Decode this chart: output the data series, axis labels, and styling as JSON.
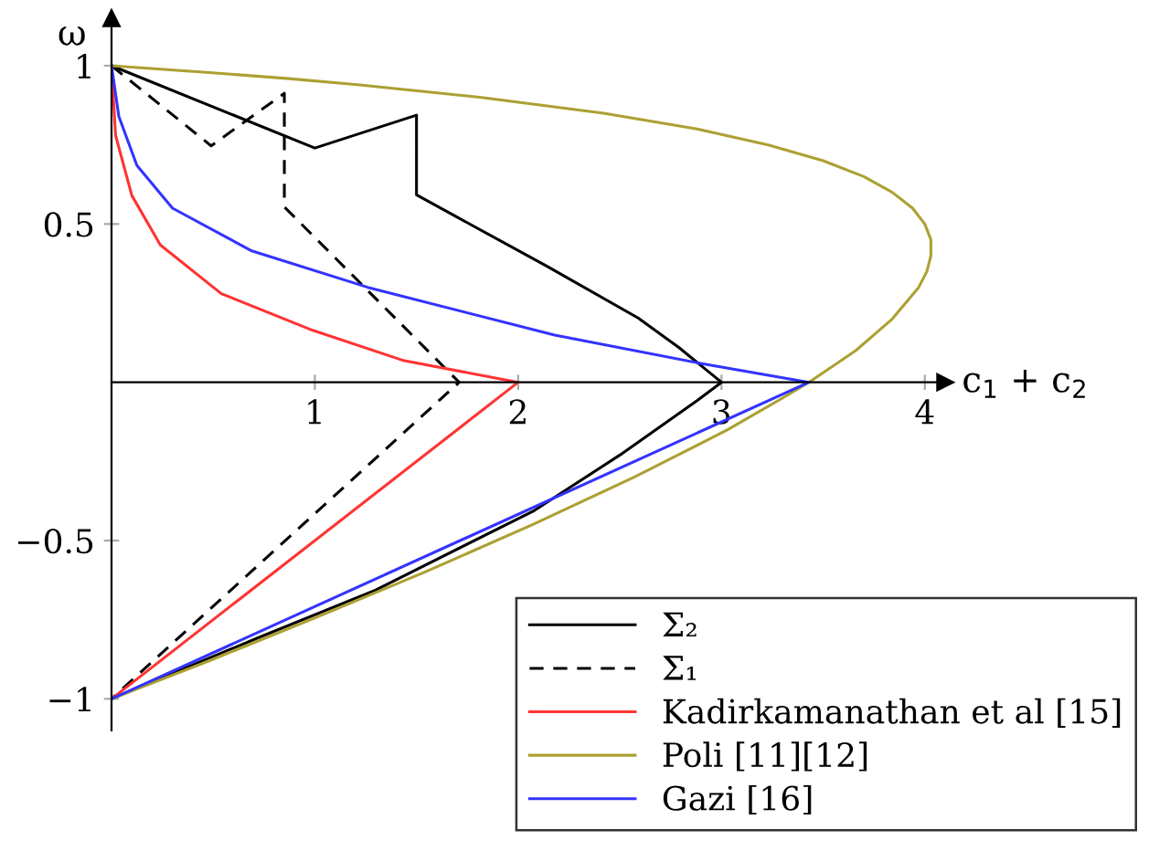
{
  "chart_data": {
    "type": "line",
    "xlabel": "c$_{1}$ + c$_{2}$",
    "ylabel": "ω",
    "xlim": [
      0,
      4.1
    ],
    "ylim": [
      -1.1,
      1.15
    ],
    "xticks": [
      1,
      2,
      3,
      4
    ],
    "yticks": [
      {
        "value": -1,
        "label": "−1"
      },
      {
        "value": -0.5,
        "label": "−0.5"
      },
      0.5,
      1
    ],
    "grid": false,
    "legend": "bottom right",
    "marker": "none",
    "series": [
      {
        "name": "Σ₂",
        "color": "#000000",
        "line_style": "solid",
        "x": [
          0,
          1.0,
          1.5,
          1.5,
          2.14,
          2.59,
          2.79,
          3.0,
          2.88,
          2.5,
          2.08,
          1.3,
          0.71,
          0
        ],
        "values": [
          1,
          0.74,
          0.844,
          0.592,
          0.367,
          0.203,
          0.11,
          0,
          -0.058,
          -0.23,
          -0.405,
          -0.656,
          -0.81,
          -1
        ]
      },
      {
        "name": "Σ₁",
        "color": "#000000",
        "line_style": "dashed",
        "x": [
          0,
          0.49,
          0.85,
          0.85,
          1.71,
          0
        ],
        "values": [
          1,
          0.747,
          0.913,
          0.554,
          0,
          -1
        ]
      },
      {
        "name": "Kadirkamanathan et al [15]",
        "color": "#ff3333",
        "line_style": "solid",
        "x": [
          0,
          0.02,
          0.1,
          0.24,
          0.54,
          0.99,
          1.44,
          2,
          0
        ],
        "values": [
          1,
          0.78,
          0.59,
          0.434,
          0.28,
          0.164,
          0.068,
          0,
          -1
        ]
      },
      {
        "name": "Poli [11][12]",
        "color": "#aca033",
        "line_style": "solid",
        "x": [
          0,
          0.45,
          0.86,
          1.21,
          1.82,
          2.42,
          2.88,
          3.23,
          3.5,
          3.7,
          3.84,
          3.94,
          4.0,
          4.03,
          4.03,
          4.01,
          3.97,
          3.84,
          3.66,
          3.43,
          3.3,
          3.03,
          2.57,
          2.07,
          1.54,
          0.98,
          0.48,
          0
        ],
        "values": [
          1,
          0.98,
          0.96,
          0.94,
          0.9,
          0.85,
          0.8,
          0.75,
          0.7,
          0.65,
          0.6,
          0.55,
          0.5,
          0.45,
          0.4,
          0.35,
          0.3,
          0.2,
          0.1,
          0,
          -0.05,
          -0.15,
          -0.3,
          -0.45,
          -0.6,
          -0.75,
          -0.88,
          -1
        ]
      },
      {
        "name": "Gazi [16]",
        "color": "#3333ff",
        "line_style": "solid",
        "x": [
          0,
          0.036,
          0.125,
          0.3,
          0.69,
          1.26,
          2.18,
          2.91,
          3.43,
          0
        ],
        "values": [
          1,
          0.84,
          0.685,
          0.55,
          0.415,
          0.3,
          0.149,
          0.058,
          0,
          -1
        ]
      }
    ]
  }
}
